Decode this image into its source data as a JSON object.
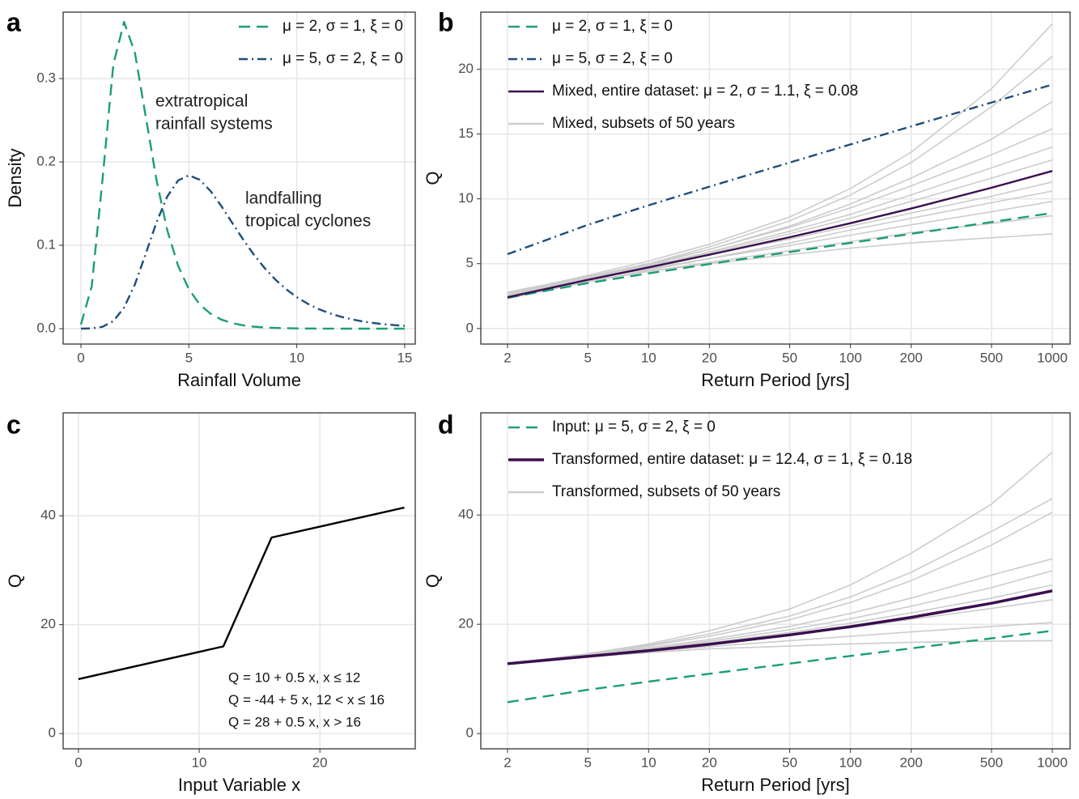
{
  "chart_data": [
    {
      "type": "line",
      "label": "a",
      "xlabel": "Rainfall Volume",
      "ylabel": "Density",
      "x": [
        0,
        0.5,
        1,
        1.5,
        2,
        2.5,
        3,
        3.5,
        4,
        4.5,
        5,
        5.5,
        6,
        6.5,
        7,
        7.5,
        8,
        8.5,
        9,
        9.5,
        10,
        10.5,
        11,
        11.5,
        12,
        12.5,
        13,
        13.5,
        14,
        14.5,
        15
      ],
      "series": [
        {
          "name": "μ = 2, σ = 1, ξ = 0",
          "color": "#1b9e77",
          "dash": "dashed",
          "values": [
            0.005,
            0.0508,
            0.1794,
            0.317,
            0.3679,
            0.3307,
            0.2546,
            0.1785,
            0.1182,
            0.0756,
            0.0474,
            0.0293,
            0.018,
            0.011,
            0.0067,
            0.0041,
            0.0025,
            0.0015,
            0.0009,
            0.0006,
            0.0003,
            0.0002,
            0.0001,
            0.0001,
            0,
            0,
            0,
            0,
            0,
            0,
            0
          ]
        },
        {
          "name": "μ = 5, σ = 2, ξ = 0",
          "color": "#1f4e79",
          "dash": "dotdash",
          "values": [
            0,
            0.0004,
            0.0023,
            0.0091,
            0.0254,
            0.0532,
            0.0897,
            0.1274,
            0.1585,
            0.1778,
            0.1839,
            0.1787,
            0.1653,
            0.1473,
            0.1273,
            0.1076,
            0.0893,
            0.073,
            0.0591,
            0.0475,
            0.0378,
            0.03,
            0.0237,
            0.0187,
            0.0147,
            0.0115,
            0.009,
            0.007,
            0.0055,
            0.0043,
            0.0034
          ]
        }
      ],
      "xlim": [
        -0.825,
        15.49
      ],
      "ylim": [
        -0.0184,
        0.3796
      ],
      "xticks": [
        0,
        5,
        10,
        15
      ],
      "yticks": [
        {
          "value": 0,
          "label": "0.0"
        },
        0.1,
        0.2,
        0.3
      ],
      "grid": true,
      "legend": "top-right",
      "annotations": [
        {
          "lines": [
            "extratropical",
            "rainfall systems"
          ],
          "color": "#1b9e77"
        },
        {
          "lines": [
            "landfalling",
            "tropical cyclones"
          ],
          "color": "#1f4e79"
        }
      ]
    },
    {
      "type": "line",
      "label": "b",
      "xlabel": "Return Period [yrs]",
      "ylabel": "Q",
      "xscale": "log",
      "x": [
        2,
        5,
        10,
        20,
        50,
        100,
        200,
        500,
        1000
      ],
      "series": [
        {
          "name": "μ = 2, σ = 1, ξ = 0",
          "color": "#1b9e77",
          "dash": "dashed",
          "values": [
            2.37,
            3.5,
            4.25,
            4.97,
            5.9,
            6.6,
            7.3,
            8.21,
            8.91
          ]
        },
        {
          "name": "μ = 5, σ = 2, ξ = 0",
          "color": "#1f4e79",
          "dash": "dotdash",
          "values": [
            5.73,
            8.0,
            9.5,
            10.94,
            12.8,
            14.2,
            15.59,
            17.43,
            18.81
          ]
        },
        {
          "name": "Mixed, entire dataset: μ = 2, σ = 1.1, ξ = 0.08",
          "color": "#3b0f4f",
          "dash": "solid",
          "values": [
            2.41,
            3.75,
            4.71,
            5.69,
            7.04,
            8.12,
            9.25,
            10.86,
            12.15
          ]
        },
        {
          "name": "Mixed, subsets of 50 years",
          "color": "#cccccc",
          "dash": "solid",
          "values": [
            [
              2.5,
              3.7,
              4.4,
              5.0,
              5.7,
              6.2,
              6.6,
              7.0,
              7.3
            ],
            [
              2.4,
              3.6,
              4.4,
              5.1,
              6.0,
              6.7,
              7.4,
              8.1,
              8.7
            ],
            [
              2.6,
              3.8,
              4.6,
              5.4,
              6.4,
              7.2,
              8.0,
              9.0,
              9.8
            ],
            [
              2.3,
              3.6,
              4.5,
              5.4,
              6.6,
              7.6,
              8.5,
              9.7,
              10.6
            ],
            [
              2.8,
              4.0,
              4.9,
              5.7,
              6.9,
              7.9,
              8.9,
              10.2,
              11.3
            ],
            [
              2.5,
              3.8,
              4.8,
              5.8,
              7.3,
              8.5,
              9.8,
              11.6,
              13.0
            ],
            [
              2.4,
              3.8,
              4.8,
              5.9,
              7.5,
              8.8,
              10.3,
              12.4,
              14.0
            ],
            [
              2.6,
              4.0,
              5.0,
              6.1,
              7.8,
              9.3,
              11.0,
              13.4,
              15.4
            ],
            [
              2.4,
              3.8,
              4.9,
              6.1,
              7.9,
              9.6,
              11.6,
              14.6,
              17.5
            ],
            [
              2.5,
              3.9,
              5.0,
              6.3,
              8.3,
              10.3,
              12.8,
              17.1,
              21.0
            ],
            [
              2.7,
              4.1,
              5.2,
              6.5,
              8.6,
              10.8,
              13.6,
              18.5,
              23.5
            ]
          ]
        }
      ],
      "xlim": [
        1.475,
        1225
      ],
      "ylim": [
        -1.2,
        24.4
      ],
      "xticks": [
        2,
        5,
        10,
        20,
        50,
        100,
        200,
        500,
        1000
      ],
      "yticks": [
        0,
        5,
        10,
        15,
        20
      ],
      "grid": true,
      "legend": "top-left"
    },
    {
      "type": "line",
      "label": "c",
      "xlabel": "Input Variable x",
      "ylabel": "Q",
      "x": [
        0,
        12,
        16,
        27
      ],
      "series": [
        {
          "color": "#000000",
          "dash": "solid",
          "values": [
            10,
            16,
            36,
            41.5
          ]
        }
      ],
      "xlim": [
        -1.27,
        27.9
      ],
      "ylim": [
        -2.8,
        58.9
      ],
      "xticks": [
        0,
        10,
        20
      ],
      "yticks": [
        0,
        20,
        40
      ],
      "grid": true,
      "annotations": [
        {
          "lines": [
            "Q = 10 + 0.5 x, x ≤ 12",
            "Q = -44 + 5 x, 12 < x ≤ 16",
            "Q = 28 + 0.5 x, x > 16"
          ],
          "color": "#111111"
        }
      ]
    },
    {
      "type": "line",
      "label": "d",
      "xlabel": "Return Period [yrs]",
      "ylabel": "Q",
      "xscale": "log",
      "x": [
        2,
        5,
        10,
        20,
        50,
        100,
        200,
        500,
        1000
      ],
      "series": [
        {
          "name": "Input: μ = 5, σ = 2, ξ = 0",
          "color": "#1b9e77",
          "dash": "dashed",
          "values": [
            5.73,
            8.0,
            9.5,
            10.94,
            12.8,
            14.2,
            15.59,
            17.43,
            18.81
          ]
        },
        {
          "name": "Transformed, entire dataset: μ = 12.4, σ = 1, ξ = 0.18",
          "color": "#3b0f4f",
          "dash": "solid",
          "values": [
            12.78,
            14.12,
            15.18,
            16.33,
            18.06,
            19.56,
            21.26,
            23.84,
            26.11
          ]
        },
        {
          "name": "Transformed, subsets of 50 years",
          "color": "#cccccc",
          "dash": "solid",
          "values": [
            [
              12.8,
              14.0,
              14.8,
              15.5,
              16.0,
              16.4,
              16.7,
              16.9,
              17.0
            ],
            [
              12.7,
              14.0,
              15.0,
              15.9,
              17.0,
              17.8,
              18.6,
              19.6,
              20.3
            ],
            [
              12.9,
              14.2,
              15.3,
              16.4,
              18.0,
              19.4,
              20.9,
              22.9,
              24.5
            ],
            [
              12.8,
              14.2,
              15.4,
              16.6,
              18.5,
              20.2,
              22.1,
              24.8,
              27.2
            ],
            [
              12.7,
              14.2,
              15.5,
              16.9,
              19.0,
              21.0,
              23.3,
              26.7,
              29.8
            ],
            [
              12.9,
              14.4,
              15.7,
              17.2,
              19.6,
              22.0,
              24.8,
              29.0,
              32.0
            ],
            [
              12.7,
              14.4,
              16.0,
              17.8,
              20.8,
              24.0,
              28.0,
              34.5,
              40.5
            ],
            [
              12.8,
              14.5,
              16.2,
              18.2,
              21.5,
              25.0,
              29.5,
              37.0,
              43.0
            ],
            [
              12.8,
              14.6,
              16.4,
              18.8,
              22.8,
              27.2,
              33.0,
              42.0,
              51.5
            ]
          ]
        }
      ],
      "xlim": [
        1.475,
        1225
      ],
      "ylim": [
        -2.8,
        58.7
      ],
      "xticks": [
        2,
        5,
        10,
        20,
        50,
        100,
        200,
        500,
        1000
      ],
      "yticks": [
        0,
        20,
        40
      ],
      "grid": true,
      "legend": "top-left"
    }
  ]
}
